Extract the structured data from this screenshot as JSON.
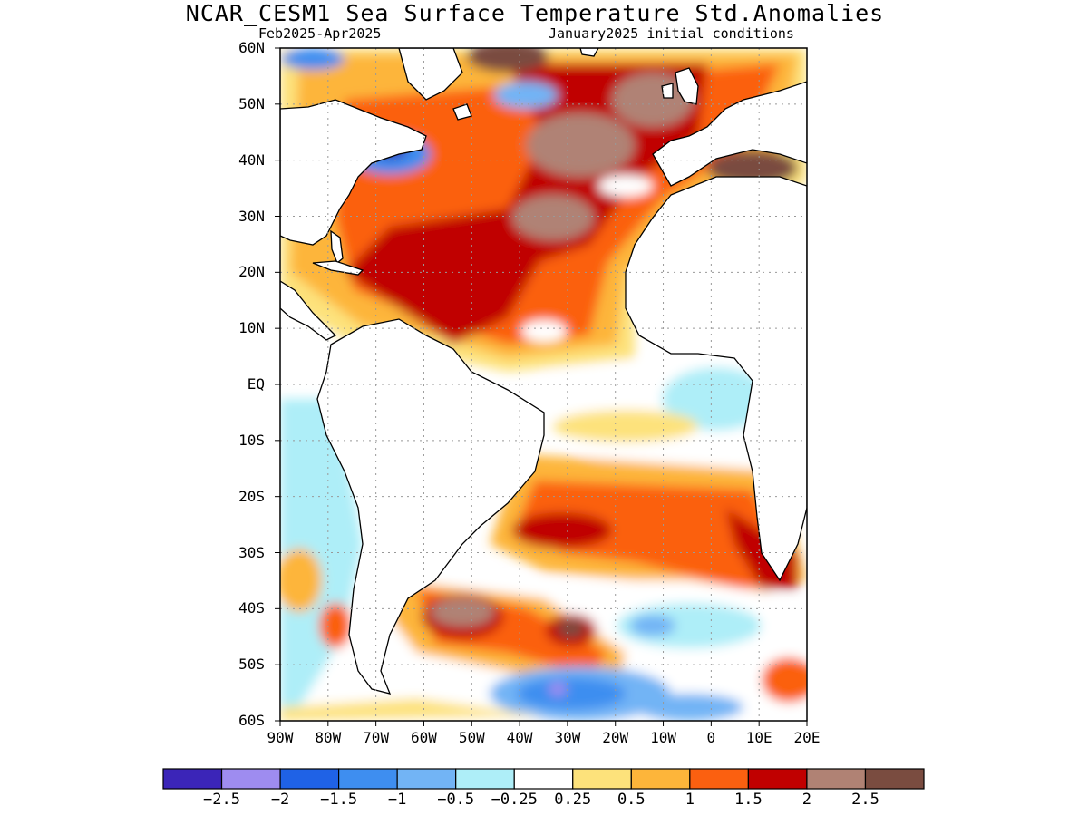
{
  "title": "NCAR_CESM1 Sea Surface Temperature Std.Anomalies",
  "subtitle_left": "Feb2025-Apr2025",
  "subtitle_right": "January2025 initial conditions",
  "lat_labels": [
    "60N",
    "50N",
    "40N",
    "30N",
    "20N",
    "10N",
    "EQ",
    "10S",
    "20S",
    "30S",
    "40S",
    "50S",
    "60S"
  ],
  "lon_labels": [
    "90W",
    "80W",
    "70W",
    "60W",
    "50W",
    "40W",
    "30W",
    "20W",
    "10W",
    "0",
    "10E",
    "20E"
  ],
  "map_extent": {
    "lon_min": -90,
    "lon_max": 20,
    "lat_min": -60,
    "lat_max": 60
  },
  "legend": {
    "labels": [
      "-2.5",
      "-2",
      "-1.5",
      "-1",
      "-0.5",
      "-0.25",
      "0.25",
      "0.5",
      "1",
      "1.5",
      "2",
      "2.5"
    ],
    "colors": [
      "#3b25b8",
      "#9e8cf0",
      "#1f62e6",
      "#3e8ef0",
      "#72b4f5",
      "#aeeef8",
      "#ffffff",
      "#fde27b",
      "#fdb53a",
      "#fb6010",
      "#c00000",
      "#b08274",
      "#7a4c40"
    ]
  }
}
